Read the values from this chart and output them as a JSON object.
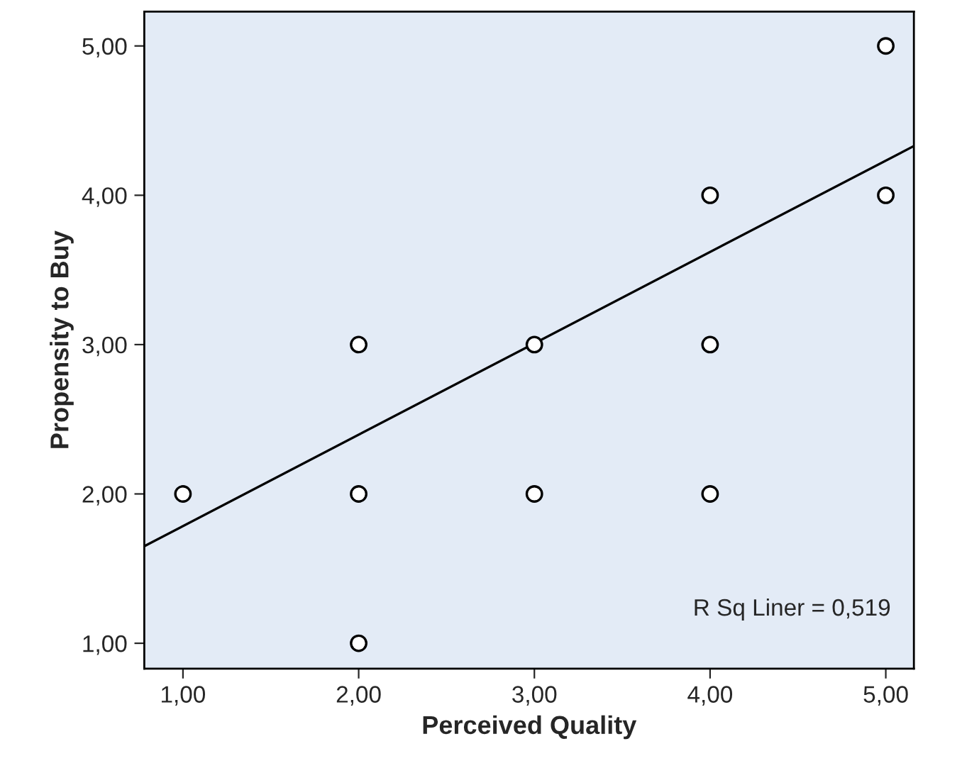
{
  "chart_data": {
    "type": "scatter",
    "xlabel": "Perceived Quality",
    "ylabel": "Propensity to Buy",
    "xlim": [
      0.78,
      5.16
    ],
    "ylim": [
      0.83,
      5.23
    ],
    "xticks": [
      {
        "value": 1,
        "label": "1,00"
      },
      {
        "value": 2,
        "label": "2,00"
      },
      {
        "value": 3,
        "label": "3,00"
      },
      {
        "value": 4,
        "label": "4,00"
      },
      {
        "value": 5,
        "label": "5,00"
      }
    ],
    "yticks": [
      {
        "value": 1,
        "label": "1,00"
      },
      {
        "value": 2,
        "label": "2,00"
      },
      {
        "value": 3,
        "label": "3,00"
      },
      {
        "value": 4,
        "label": "4,00"
      },
      {
        "value": 5,
        "label": "5,00"
      }
    ],
    "grid": false,
    "legend": false,
    "series": [
      {
        "marker": "circle",
        "color": "#000000",
        "x": [
          1,
          2,
          2,
          2,
          3,
          3,
          4,
          4,
          4,
          5,
          5
        ],
        "values": [
          2,
          3,
          2,
          1,
          3,
          2,
          4,
          3,
          2,
          5,
          4
        ]
      },
      {
        "type": "line",
        "marker": "none",
        "color": "#000000",
        "x": [
          0.78,
          5.16
        ],
        "values": [
          1.65,
          4.33
        ]
      }
    ],
    "annotations": [
      "R Sq Liner = 0,519"
    ]
  }
}
